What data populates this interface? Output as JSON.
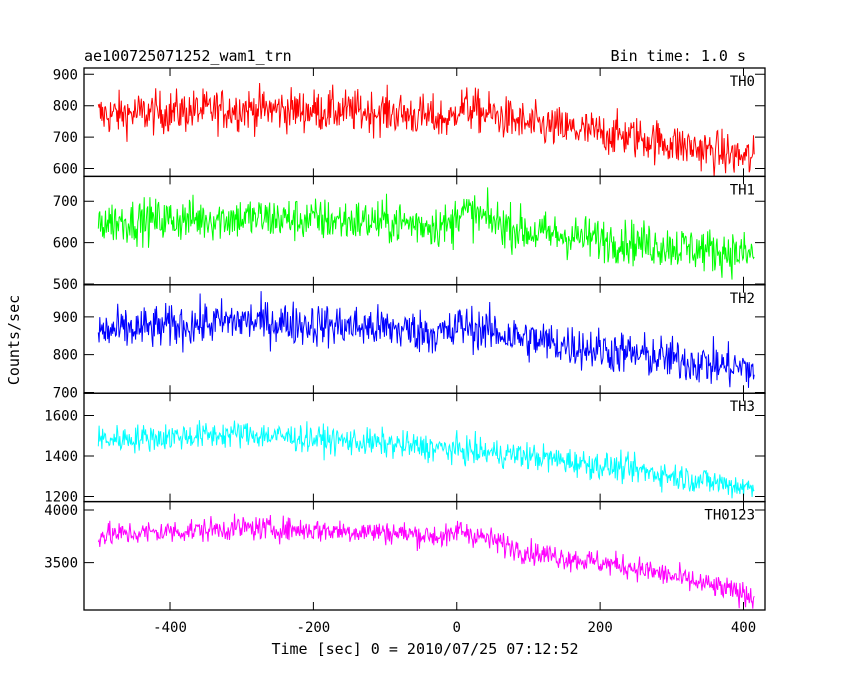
{
  "chart_data": {
    "type": "line",
    "title": "ae100725071252_wam1_trn",
    "bin_time": "Bin time: 1.0 s",
    "xlabel": "Time [sec] 0 = 2010/07/25 07:12:52",
    "ylabel": "Counts/sec",
    "xlim": [
      -520,
      430
    ],
    "xticks": [
      -400,
      -200,
      0,
      200,
      400
    ],
    "x_range": [
      -500,
      415
    ],
    "panels": [
      {
        "name": "TH0",
        "color": "#ff0000",
        "ylim": [
          575,
          920
        ],
        "yticks": [
          600,
          700,
          800,
          900
        ],
        "trend": [
          [
            -500,
            770
          ],
          [
            -300,
            790
          ],
          [
            -100,
            780
          ],
          [
            -5,
            755
          ],
          [
            0,
            800
          ],
          [
            100,
            740
          ],
          [
            250,
            700
          ],
          [
            415,
            630
          ]
        ],
        "noise": 45
      },
      {
        "name": "TH1",
        "color": "#00ff00",
        "ylim": [
          498,
          760
        ],
        "yticks": [
          500,
          600,
          700
        ],
        "trend": [
          [
            -500,
            650
          ],
          [
            -300,
            660
          ],
          [
            -100,
            650
          ],
          [
            -5,
            640
          ],
          [
            0,
            680
          ],
          [
            100,
            625
          ],
          [
            250,
            600
          ],
          [
            415,
            570
          ]
        ],
        "noise": 35
      },
      {
        "name": "TH2",
        "color": "#0000ff",
        "ylim": [
          698,
          985
        ],
        "yticks": [
          700,
          800,
          900
        ],
        "trend": [
          [
            -500,
            860
          ],
          [
            -300,
            890
          ],
          [
            -100,
            870
          ],
          [
            -5,
            855
          ],
          [
            0,
            880
          ],
          [
            100,
            840
          ],
          [
            250,
            800
          ],
          [
            415,
            760
          ]
        ],
        "noise": 38
      },
      {
        "name": "TH3",
        "color": "#00ffff",
        "ylim": [
          1175,
          1710
        ],
        "yticks": [
          1200,
          1400,
          1600
        ],
        "trend": [
          [
            -500,
            1480
          ],
          [
            -300,
            1510
          ],
          [
            -100,
            1460
          ],
          [
            0,
            1430
          ],
          [
            100,
            1400
          ],
          [
            250,
            1330
          ],
          [
            415,
            1240
          ]
        ],
        "noise": 45
      },
      {
        "name": "TH0123",
        "color": "#ff00ff",
        "ylim": [
          3050,
          4080
        ],
        "yticks": [
          3500,
          4000
        ],
        "trend": [
          [
            -500,
            3760
          ],
          [
            -300,
            3830
          ],
          [
            -100,
            3790
          ],
          [
            -5,
            3740
          ],
          [
            0,
            3820
          ],
          [
            100,
            3600
          ],
          [
            250,
            3450
          ],
          [
            415,
            3180
          ]
        ],
        "noise": 75
      }
    ]
  }
}
